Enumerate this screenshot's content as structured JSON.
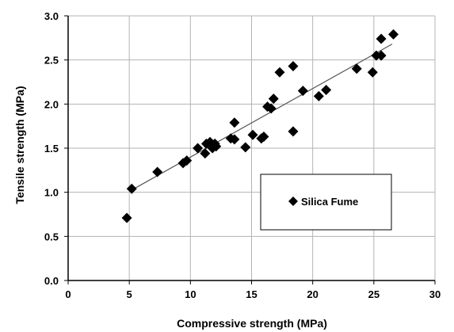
{
  "chart_data": {
    "type": "scatter",
    "xlabel": "Compressive strength  (MPa)",
    "ylabel": "Tensile strength (MPa)",
    "xlim": [
      0,
      30
    ],
    "ylim": [
      0,
      3.0
    ],
    "xticks": [
      0,
      5,
      10,
      15,
      20,
      25,
      30
    ],
    "yticks": [
      0.0,
      0.5,
      1.0,
      1.5,
      2.0,
      2.5,
      3.0
    ],
    "xtick_labels": [
      "0",
      "5",
      "10",
      "15",
      "20",
      "25",
      "30"
    ],
    "ytick_labels": [
      "0.0",
      "0.5",
      "1.0",
      "1.5",
      "2.0",
      "2.5",
      "3.0"
    ],
    "grid": true,
    "legend_position": "right",
    "series": [
      {
        "name": "Silica Fume",
        "marker": "diamond",
        "color": "#000000",
        "x": [
          4.8,
          5.2,
          7.3,
          9.4,
          9.7,
          10.6,
          11.2,
          11.3,
          11.6,
          11.8,
          12.0,
          12.1,
          13.3,
          13.6,
          13.6,
          14.5,
          15.1,
          15.8,
          16.0,
          16.3,
          16.6,
          16.8,
          17.3,
          18.4,
          18.4,
          19.2,
          20.5,
          21.1,
          23.6,
          24.9,
          25.2,
          25.6,
          25.6,
          26.6
        ],
        "y": [
          0.71,
          1.04,
          1.23,
          1.33,
          1.36,
          1.5,
          1.44,
          1.55,
          1.57,
          1.5,
          1.55,
          1.52,
          1.61,
          1.6,
          1.79,
          1.51,
          1.65,
          1.61,
          1.63,
          1.97,
          1.95,
          2.06,
          2.36,
          2.43,
          1.69,
          2.15,
          2.09,
          2.16,
          2.4,
          2.36,
          2.55,
          2.55,
          2.74,
          2.79
        ]
      }
    ],
    "trendline": {
      "type": "linear",
      "color": "#555555",
      "x": [
        5.0,
        26.5
      ],
      "y": [
        1.01,
        2.68
      ]
    }
  }
}
